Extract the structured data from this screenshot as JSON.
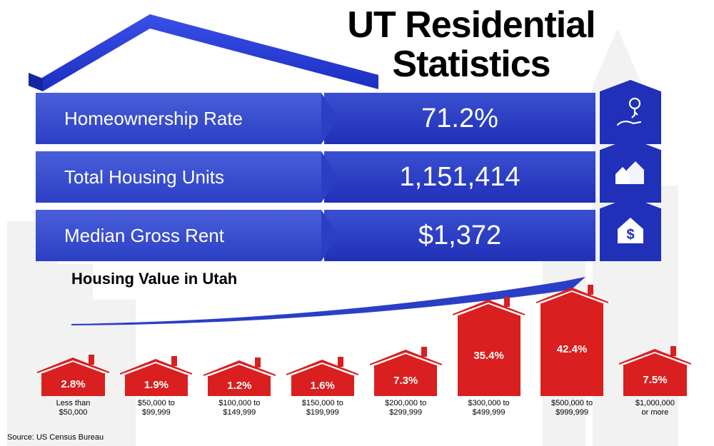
{
  "title_line1": "UT Residential",
  "title_line2": "Statistics",
  "title_color": "#000000",
  "title_fontsize": 52,
  "background_color": "#ffffff",
  "primary_blue": "#2a3fc5",
  "primary_blue_light": "#4a5fd8",
  "roof_color": "#2030d0",
  "stats": [
    {
      "label": "Homeownership Rate",
      "value": "71.2%",
      "icon": "keys-hand"
    },
    {
      "label": "Total Housing Units",
      "value": "1,151,414",
      "icon": "houses"
    },
    {
      "label": "Median Gross Rent",
      "value": "$1,372",
      "icon": "house-dollar"
    }
  ],
  "stat_label_fontsize": 26,
  "stat_value_fontsize": 38,
  "stat_text_color": "#ffffff",
  "chart": {
    "title": "Housing Value in Utah",
    "title_fontsize": 22,
    "type": "bar-infographic",
    "bar_color": "#d91f1f",
    "value_text_color": "#ffffff",
    "label_text_color": "#000000",
    "label_fontsize": 11,
    "value_fontsize": 15,
    "swoosh_color": "#2a3fc5",
    "min_body_height": 28,
    "max_body_height": 130,
    "items": [
      {
        "pct": "2.8%",
        "value": 2.8,
        "label_l1": "Less than",
        "label_l2": "$50,000"
      },
      {
        "pct": "1.9%",
        "value": 1.9,
        "label_l1": "$50,000 to",
        "label_l2": "$99,999"
      },
      {
        "pct": "1.2%",
        "value": 1.2,
        "label_l1": "$100,000 to",
        "label_l2": "$149,999"
      },
      {
        "pct": "1.6%",
        "value": 1.6,
        "label_l1": "$150,000 to",
        "label_l2": "$199,999"
      },
      {
        "pct": "7.3%",
        "value": 7.3,
        "label_l1": "$200,000 to",
        "label_l2": "$299,999"
      },
      {
        "pct": "35.4%",
        "value": 35.4,
        "label_l1": "$300,000 to",
        "label_l2": "$499,999"
      },
      {
        "pct": "42.4%",
        "value": 42.4,
        "label_l1": "$500,000 to",
        "label_l2": "$999,999"
      },
      {
        "pct": "7.5%",
        "value": 7.5,
        "label_l1": "$1,000,000",
        "label_l2": "or more"
      }
    ]
  },
  "source": "Source: US Census Bureau"
}
